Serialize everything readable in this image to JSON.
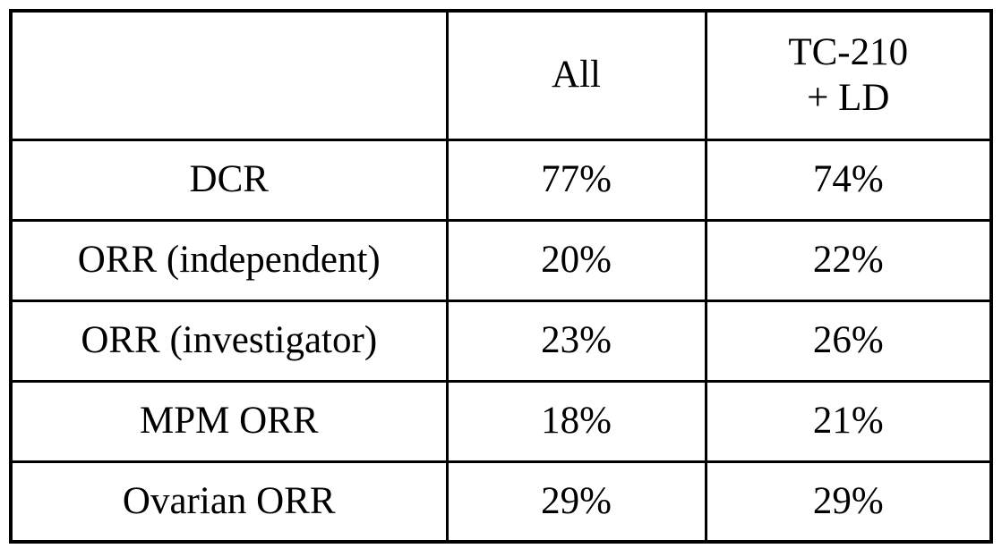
{
  "colors": {
    "background": "#ffffff",
    "border": "#000000",
    "text": "#000000"
  },
  "chart_data": {
    "type": "table",
    "title": "",
    "columns": [
      "",
      "All",
      "TC-210\n+ LD"
    ],
    "rows": [
      [
        "DCR",
        "77%",
        "74%"
      ],
      [
        "ORR (independent)",
        "20%",
        "22%"
      ],
      [
        "ORR (investigator)",
        "23%",
        "26%"
      ],
      [
        "MPM ORR",
        "18%",
        "21%"
      ],
      [
        "Ovarian ORR",
        "29%",
        "29%"
      ]
    ]
  }
}
